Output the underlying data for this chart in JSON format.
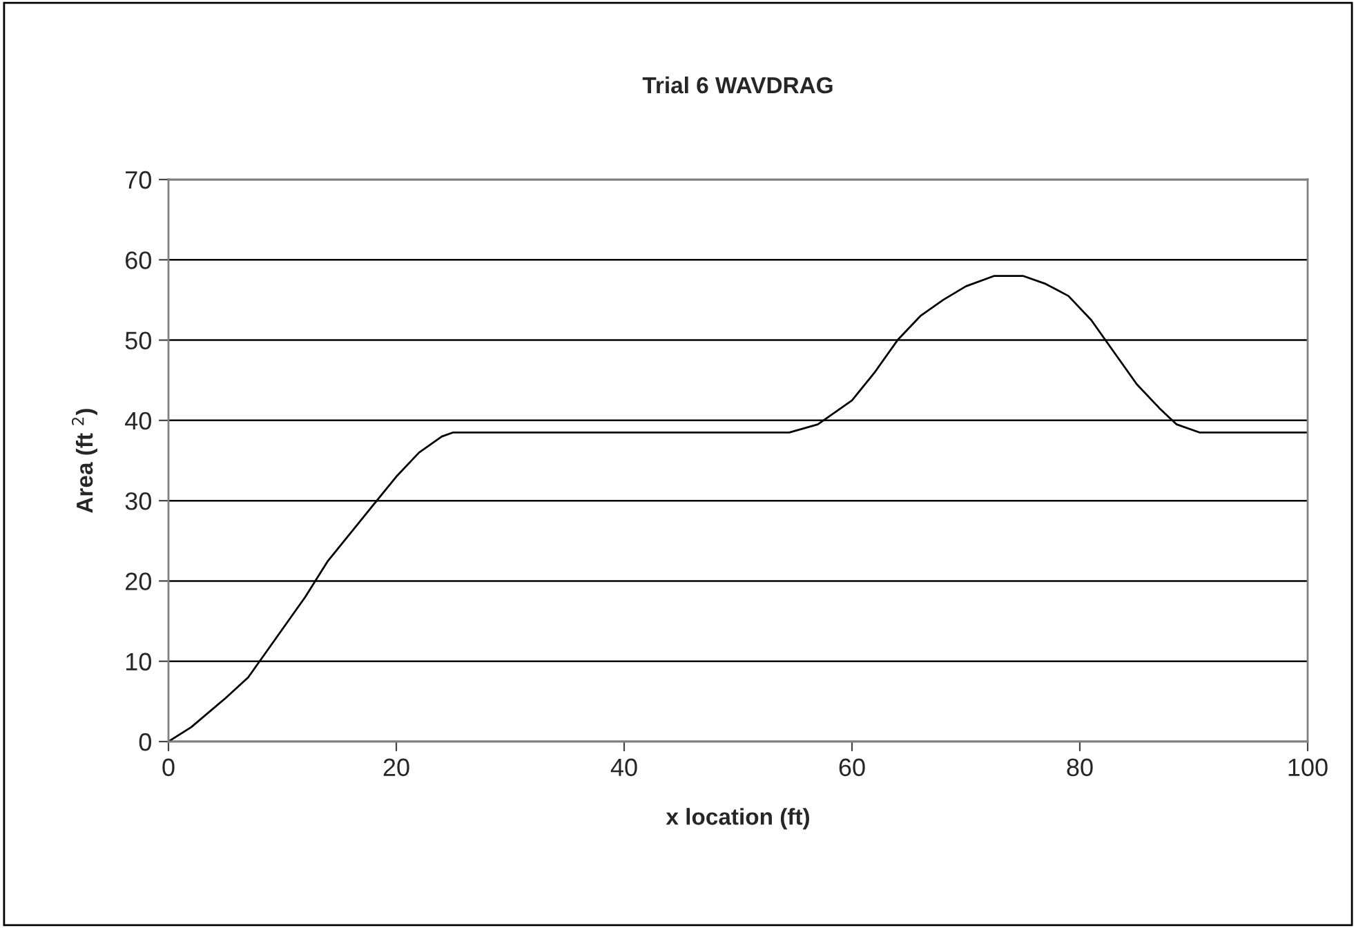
{
  "chart_data": {
    "type": "line",
    "title": "Trial 6 WAVDRAG",
    "xlabel": "x location (ft)",
    "ylabel": "Area (ft $^{2}$)",
    "series": [
      {
        "color": "#000000",
        "x": [
          0,
          2,
          3,
          5,
          7,
          8,
          10,
          12,
          14,
          16,
          18,
          20,
          22,
          24,
          25,
          54.5,
          57,
          60,
          62,
          64,
          66,
          68,
          70,
          72.5,
          75,
          77,
          79,
          81,
          83,
          85,
          87,
          88.5,
          90.5,
          100
        ],
        "values": [
          0,
          1.8,
          3,
          5.4,
          8,
          10,
          14,
          18,
          22.5,
          26,
          29.5,
          33,
          36,
          38,
          38.5,
          38.5,
          39.5,
          42.5,
          46,
          50,
          53,
          55,
          56.7,
          58,
          58,
          57,
          55.5,
          52.5,
          48.5,
          44.5,
          41.5,
          39.5,
          38.5,
          38.5
        ]
      }
    ],
    "xlim": [
      0,
      100
    ],
    "xticks": [
      0,
      20,
      40,
      60,
      80,
      100
    ],
    "ylim": [
      0,
      70
    ],
    "yticks": [
      0,
      10,
      20,
      30,
      40,
      50,
      60,
      70
    ],
    "grid": "y",
    "marker": "none",
    "line_style": "solid"
  }
}
